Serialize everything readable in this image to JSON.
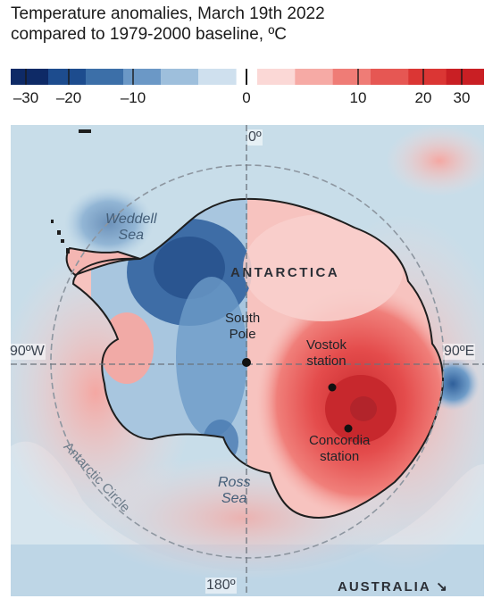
{
  "title": {
    "line1": "Temperature anomalies, March 19th 2022",
    "line2": "compared to 1979-2000 baseline, ºC"
  },
  "scale": {
    "tick_labels": [
      "–30",
      "–20",
      "–10",
      "0",
      "10",
      "20",
      "30"
    ],
    "cold_colors": [
      "#0e2a66",
      "#1d4c8e",
      "#3c6fa8",
      "#6b98c6",
      "#9ebfdc",
      "#cfe0ee"
    ],
    "warm_colors": [
      "#fbd8d6",
      "#f6aaa5",
      "#ef7c76",
      "#e65753",
      "#db3634",
      "#c91f24"
    ]
  },
  "map": {
    "labels": {
      "meridian_0": "0º",
      "meridian_180": "180º",
      "meridian_90w": "90ºW",
      "meridian_90e": "90ºE",
      "weddell": [
        "Weddell",
        "Sea"
      ],
      "ross": [
        "Ross",
        "Sea"
      ],
      "antarctica": "ANTARCTICA",
      "south_pole": [
        "South",
        "Pole"
      ],
      "vostok": [
        "Vostok",
        "station"
      ],
      "concordia": [
        "Concordia",
        "station"
      ],
      "antarctic_circle": "Antarctic Circle",
      "australia": "AUSTRALIA ↘"
    }
  }
}
